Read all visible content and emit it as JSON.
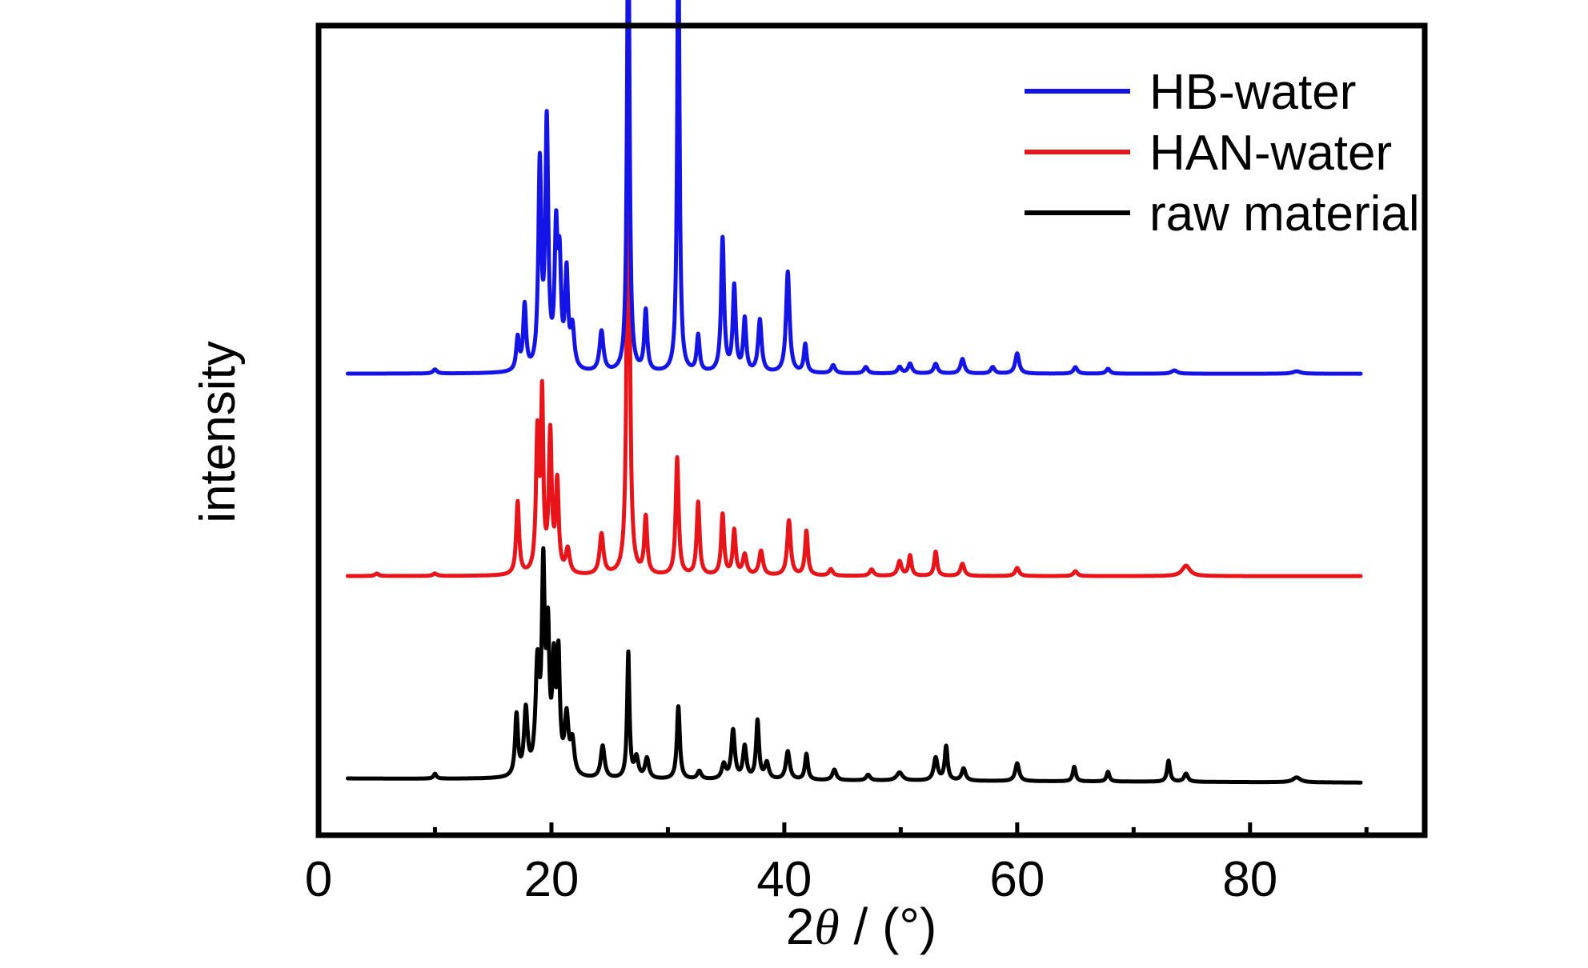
{
  "chart_data": {
    "type": "line",
    "title": "",
    "xlabel": "2θ / (°)",
    "xlabel_prefix": "2",
    "xlabel_symbol": "θ",
    "xlabel_suffix": " / (°)",
    "ylabel": "intensity",
    "xlim": [
      0,
      95
    ],
    "ylim": [
      0,
      100
    ],
    "y_ticks_shown": false,
    "grid": false,
    "legend_position": "top-right",
    "x_ticks": [
      0,
      20,
      40,
      60,
      80
    ],
    "x_tick_labels": [
      "0",
      "20",
      "40",
      "60",
      "80"
    ],
    "x_minor_ticks": [
      10,
      30,
      50,
      70,
      90
    ],
    "series": [
      {
        "name": "raw material",
        "color": "#000000",
        "baseline": 7,
        "range": [
          2.5,
          89.5
        ],
        "slope": -0.5,
        "peaks": [
          [
            10.0,
            0.6,
            0.15
          ],
          [
            17.0,
            7.5,
            0.15
          ],
          [
            17.8,
            8.0,
            0.18
          ],
          [
            18.8,
            13.0,
            0.2
          ],
          [
            19.3,
            24.0,
            0.15
          ],
          [
            19.7,
            16.0,
            0.15
          ],
          [
            20.2,
            12.5,
            0.15
          ],
          [
            20.6,
            14.0,
            0.15
          ],
          [
            21.3,
            7.0,
            0.2
          ],
          [
            21.8,
            4.0,
            0.2
          ],
          [
            24.4,
            4.0,
            0.2
          ],
          [
            26.6,
            15.5,
            0.12
          ],
          [
            27.3,
            2.5,
            0.2
          ],
          [
            28.2,
            2.5,
            0.2
          ],
          [
            30.9,
            9.0,
            0.15
          ],
          [
            32.7,
            1.0,
            0.2
          ],
          [
            34.8,
            1.8,
            0.2
          ],
          [
            35.6,
            6.0,
            0.18
          ],
          [
            36.6,
            4.0,
            0.18
          ],
          [
            37.7,
            7.2,
            0.15
          ],
          [
            38.5,
            2.0,
            0.2
          ],
          [
            40.3,
            3.5,
            0.2
          ],
          [
            41.9,
            3.2,
            0.15
          ],
          [
            44.3,
            1.3,
            0.2
          ],
          [
            47.2,
            0.7,
            0.2
          ],
          [
            49.9,
            1.0,
            0.3
          ],
          [
            53.0,
            2.8,
            0.2
          ],
          [
            53.9,
            4.2,
            0.15
          ],
          [
            55.4,
            1.5,
            0.2
          ],
          [
            60.0,
            2.2,
            0.2
          ],
          [
            64.9,
            1.8,
            0.15
          ],
          [
            67.8,
            1.2,
            0.15
          ],
          [
            73.0,
            2.6,
            0.15
          ],
          [
            74.5,
            1.0,
            0.2
          ],
          [
            84.0,
            0.6,
            0.4
          ]
        ]
      },
      {
        "name": "HAN-water",
        "color": "#e8141a",
        "baseline": 32,
        "range": [
          2.5,
          89.5
        ],
        "slope": 0.0,
        "peaks": [
          [
            5.0,
            0.3,
            0.2
          ],
          [
            10.0,
            0.3,
            0.2
          ],
          [
            17.1,
            9.0,
            0.15
          ],
          [
            18.8,
            17.0,
            0.15
          ],
          [
            19.2,
            21.0,
            0.12
          ],
          [
            19.9,
            17.0,
            0.15
          ],
          [
            20.5,
            11.0,
            0.15
          ],
          [
            21.4,
            3.0,
            0.2
          ],
          [
            24.3,
            5.0,
            0.2
          ],
          [
            26.6,
            78.0,
            0.12
          ],
          [
            28.1,
            7.0,
            0.15
          ],
          [
            30.8,
            14.5,
            0.15
          ],
          [
            32.6,
            9.0,
            0.15
          ],
          [
            34.7,
            7.5,
            0.15
          ],
          [
            35.7,
            5.5,
            0.15
          ],
          [
            36.6,
            2.5,
            0.2
          ],
          [
            38.0,
            3.0,
            0.2
          ],
          [
            40.4,
            6.8,
            0.18
          ],
          [
            41.9,
            5.5,
            0.15
          ],
          [
            44.0,
            0.8,
            0.2
          ],
          [
            47.5,
            0.8,
            0.2
          ],
          [
            49.9,
            1.8,
            0.2
          ],
          [
            50.8,
            2.5,
            0.15
          ],
          [
            53.0,
            3.0,
            0.15
          ],
          [
            55.3,
            1.5,
            0.2
          ],
          [
            60.0,
            1.0,
            0.2
          ],
          [
            65.0,
            0.6,
            0.2
          ],
          [
            74.5,
            1.3,
            0.4
          ]
        ]
      },
      {
        "name": "HB-water",
        "color": "#1414e6",
        "baseline": 57,
        "range": [
          2.5,
          89.5
        ],
        "slope": 0.0,
        "peaks": [
          [
            10.0,
            0.5,
            0.2
          ],
          [
            17.1,
            4.0,
            0.15
          ],
          [
            17.7,
            8.0,
            0.15
          ],
          [
            19.0,
            25.0,
            0.15
          ],
          [
            19.6,
            30.0,
            0.15
          ],
          [
            20.4,
            16.0,
            0.15
          ],
          [
            20.7,
            12.0,
            0.15
          ],
          [
            21.3,
            11.5,
            0.15
          ],
          [
            21.8,
            5.0,
            0.2
          ],
          [
            24.3,
            5.0,
            0.2
          ],
          [
            26.6,
            63.0,
            0.12
          ],
          [
            28.1,
            7.5,
            0.15
          ],
          [
            30.9,
            55.0,
            0.12
          ],
          [
            32.6,
            4.5,
            0.15
          ],
          [
            34.7,
            16.5,
            0.15
          ],
          [
            35.7,
            10.5,
            0.15
          ],
          [
            36.6,
            6.5,
            0.15
          ],
          [
            37.9,
            6.5,
            0.18
          ],
          [
            40.3,
            12.5,
            0.18
          ],
          [
            41.8,
            3.5,
            0.15
          ],
          [
            44.2,
            1.0,
            0.2
          ],
          [
            47.0,
            0.8,
            0.2
          ],
          [
            49.9,
            0.8,
            0.2
          ],
          [
            50.8,
            1.2,
            0.2
          ],
          [
            53.0,
            1.2,
            0.2
          ],
          [
            55.3,
            1.8,
            0.2
          ],
          [
            57.9,
            0.8,
            0.2
          ],
          [
            60.0,
            2.5,
            0.2
          ],
          [
            65.0,
            0.8,
            0.2
          ],
          [
            67.8,
            0.6,
            0.2
          ],
          [
            73.5,
            0.4,
            0.3
          ],
          [
            84.0,
            0.3,
            0.4
          ]
        ]
      }
    ]
  }
}
